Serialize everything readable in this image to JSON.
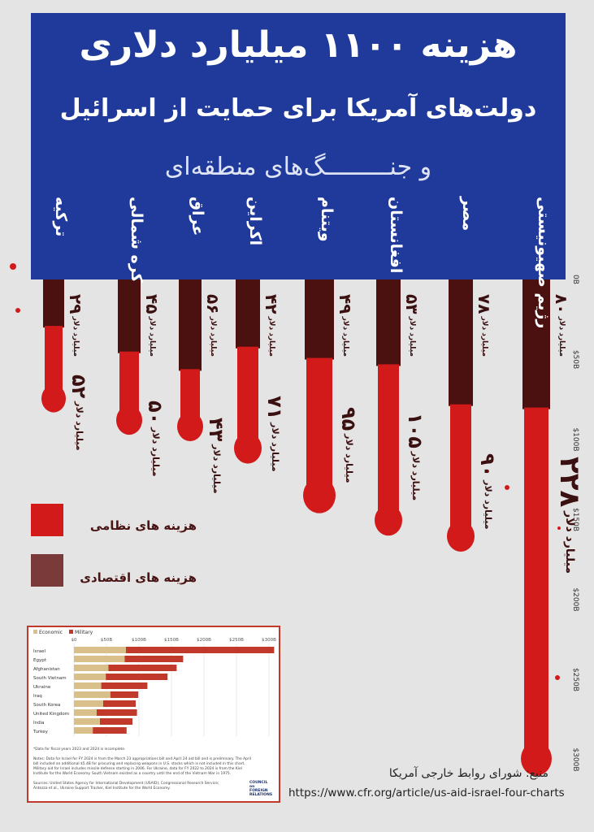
{
  "title": "هزینه ۱۱۰۰ میلیارد دلاری",
  "subtitle_line1": "دولت‌های آمریکا برای حمایت از اسرائیل",
  "subtitle_line2": "و جنـــــــــگ‌های منطقه‌ای",
  "legend": {
    "military": "هزینه های نظامی",
    "economic": "هزینه های اقتصادی"
  },
  "source_label": "منبع: شورای روابط خارجی آمریکا",
  "source_url": "https://www.cfr.org/article/us-aid-israel-four-charts",
  "colors": {
    "header": "#1f3a9a",
    "military": "#d31a1a",
    "economic": "#4b1010",
    "background": "#e4e4e4"
  },
  "chart_data": [
    {
      "type": "bar",
      "unit_label": "میلیارد دلار",
      "y_ticks": [
        "0B",
        "$50B",
        "$100B",
        "$150B",
        "$200B",
        "$250B",
        "$300B"
      ],
      "ylim": [
        0,
        300
      ],
      "series_names": [
        "هزینه های اقتصادی",
        "هزینه های نظامی"
      ],
      "countries": [
        {
          "name": "رژیم صهیونیستی",
          "economic": 80,
          "military": 228,
          "economic_label": "۸۰",
          "military_label": "۲۲۸"
        },
        {
          "name": "مصر",
          "economic": 78,
          "military": 90,
          "economic_label": "۷۸",
          "military_label": "۹۰"
        },
        {
          "name": "افغانستان",
          "economic": 53,
          "military": 105,
          "economic_label": "۵۳",
          "military_label": "۱۰۵"
        },
        {
          "name": "ویتنام",
          "economic": 49,
          "military": 95,
          "economic_label": "۴۹",
          "military_label": "۹۵"
        },
        {
          "name": "اکراین",
          "economic": 42,
          "military": 71,
          "economic_label": "۴۲",
          "military_label": "۷۱"
        },
        {
          "name": "عراق",
          "economic": 56,
          "military": 43,
          "economic_label": "۵۶",
          "military_label": "۴۳"
        },
        {
          "name": "کره شمالی",
          "economic": 45,
          "military": 50,
          "economic_label": "۴۵",
          "military_label": "۵۰"
        },
        {
          "name": "ترکیه",
          "economic": 29,
          "military": 52,
          "economic_label": "۲۹",
          "military_label": "۵۲"
        }
      ]
    },
    {
      "type": "bar",
      "legend": [
        "Economic",
        "Military"
      ],
      "x_ticks": [
        "$0",
        "$50B",
        "$100B",
        "$150B",
        "$200B",
        "$250B",
        "$300B"
      ],
      "xlim": [
        0,
        310
      ],
      "categories": [
        "Israel",
        "Egypt",
        "Afghanistan",
        "South Vietnam",
        "Ukraine",
        "Iraq",
        "South Korea",
        "United Kingdom",
        "India",
        "Turkey"
      ],
      "economic": [
        80,
        78,
        53,
        49,
        42,
        56,
        45,
        35,
        40,
        29
      ],
      "military": [
        228,
        90,
        105,
        95,
        71,
        43,
        50,
        62,
        50,
        52
      ]
    }
  ],
  "inset_notes": {
    "footnote": "*Data for fiscal years 2023 and 2024 is incomplete.",
    "notes": "Notes: Data for Israel for FY 2024 is from the March 23 appropriations bill and April 24 aid bill and is preliminary. The April bill included an additional $5.4B for procuring and replacing weapons in U.S. stocks which is not included in this chart. Military aid for Israel includes missile defense starting in 2006. For Ukraine, data for FY 2022 to 2024 is from the Kiel Institute for the World Economy. South Vietnam existed as a country until the end of the Vietnam War in 1975.",
    "sources": "Sources: United States Agency for International Development (USAID); Congressional Research Service; Antezza et al., Ukraine Support Tracker, Kiel Institute for the World Economy.",
    "publisher": "COUNCIL on FOREIGN RELATIONS"
  }
}
